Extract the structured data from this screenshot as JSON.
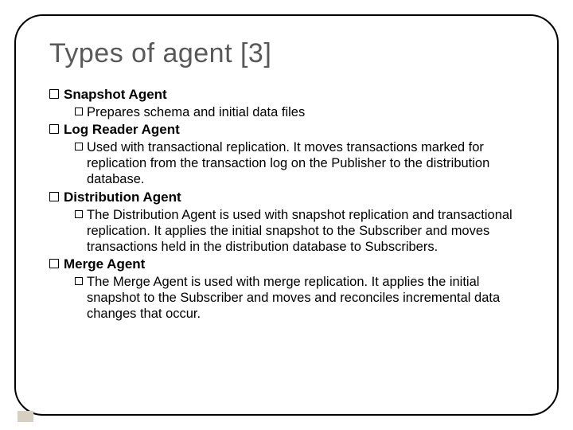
{
  "title": "Types of agent [3]",
  "sections": [
    {
      "label": "Snapshot Agent",
      "desc": "Prepares schema and initial data files"
    },
    {
      "label": "Log Reader Agent",
      "desc": "Used with transactional replication. It moves transactions marked for replication from the transaction log on the Publisher to the distribution database."
    },
    {
      "label": "Distribution Agent",
      "desc": "The Distribution Agent is used with snapshot replication and transactional replication. It applies the initial snapshot to the Subscriber and moves transactions held in the distribution database to Subscribers."
    },
    {
      "label": "Merge Agent",
      "desc": "The Merge Agent is used with merge replication. It applies the initial snapshot to the Subscriber and moves and reconciles incremental data changes that occur."
    }
  ],
  "colors": {
    "title": "#595959",
    "border": "#000000",
    "pager": "#d6d0c2",
    "background": "#ffffff"
  }
}
